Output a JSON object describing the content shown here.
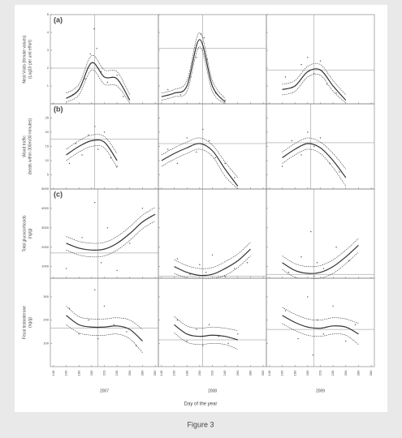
{
  "figure": {
    "caption": "Figure 3",
    "xlabel": "Day of the year",
    "years": [
      "2007",
      "2008",
      "2009"
    ],
    "rows": [
      {
        "letter": "(a)",
        "ylabel": [
          "Nest Visits (female values)",
          "(Log10 per unit effort)"
        ]
      },
      {
        "letter": "(b)",
        "ylabel": [
          "Wood traffic",
          "(beats within 300m/30 minutes)"
        ]
      },
      {
        "letter": "(c)",
        "ylabel": [
          "Total glucocorticoids",
          "(ng/g)"
        ]
      },
      {
        "ylabel": [
          "Fecal testosterone",
          "(ng/g)"
        ]
      }
    ]
  },
  "chart_data": [
    {
      "type": "line",
      "xlim": [
        135,
        305
      ],
      "xticks": [
        140,
        160,
        180,
        200,
        220,
        240,
        260,
        280,
        300
      ],
      "ylim": [
        0,
        5
      ],
      "yticks": [
        1,
        2,
        3,
        4,
        5
      ],
      "color": "#333333",
      "x": [
        140,
        160,
        180,
        200,
        220,
        240,
        260,
        280,
        300
      ],
      "fit": [
        null,
        0.3,
        0.8,
        2.3,
        1.5,
        1.4,
        0.2,
        null,
        null
      ],
      "upper": [
        null,
        0.6,
        1.1,
        2.7,
        1.9,
        1.8,
        0.5,
        null,
        null
      ],
      "lower": [
        null,
        0.1,
        0.5,
        1.9,
        1.1,
        1.0,
        0.05,
        null,
        null
      ],
      "hline": 2.0,
      "vline": 205,
      "points_x": [
        170,
        190,
        198,
        204,
        208,
        215,
        225,
        240,
        250
      ],
      "points_y": [
        0.5,
        1.4,
        2.8,
        4.2,
        3.1,
        1.8,
        1.2,
        1.6,
        0.4
      ]
    },
    {
      "type": "line",
      "xlim": [
        135,
        305
      ],
      "xticks": [
        140,
        160,
        180,
        200,
        220,
        240,
        260,
        280,
        300
      ],
      "ylim": [
        0,
        5
      ],
      "yticks": [
        1,
        2,
        3,
        4,
        5
      ],
      "color": "#333333",
      "x": [
        140,
        160,
        180,
        200,
        220,
        240,
        260,
        280,
        300
      ],
      "fit": [
        0.4,
        0.6,
        1.0,
        3.6,
        1.0,
        0.1,
        null,
        null,
        null
      ],
      "upper": [
        0.6,
        0.8,
        1.3,
        4.0,
        1.3,
        0.3,
        null,
        null,
        null
      ],
      "lower": [
        0.2,
        0.4,
        0.7,
        3.2,
        0.7,
        0.0,
        null,
        null,
        null
      ],
      "hline": 3.1,
      "vline": 205,
      "points_x": [
        150,
        170,
        185,
        195,
        202,
        207,
        212,
        225,
        240
      ],
      "points_y": [
        0.8,
        0.5,
        1.5,
        2.6,
        3.9,
        3.7,
        2.5,
        0.6,
        0.2
      ]
    },
    {
      "type": "line",
      "xlim": [
        135,
        305
      ],
      "xticks": [
        140,
        160,
        180,
        200,
        220,
        240,
        260,
        280,
        300
      ],
      "ylim": [
        0,
        5
      ],
      "yticks": [
        1,
        2,
        3,
        4,
        5
      ],
      "color": "#333333",
      "x": [
        140,
        160,
        180,
        200,
        220,
        240,
        260,
        280,
        300
      ],
      "fit": [
        null,
        0.8,
        1.0,
        1.8,
        1.9,
        1.0,
        0.2,
        null,
        null
      ],
      "upper": [
        null,
        1.1,
        1.3,
        2.1,
        2.2,
        1.3,
        0.5,
        null,
        null
      ],
      "lower": [
        null,
        0.5,
        0.7,
        1.5,
        1.6,
        0.7,
        0.05,
        null,
        null
      ],
      "hline": 1.9,
      "vline": 210,
      "points_x": [
        165,
        175,
        190,
        200,
        210,
        220,
        230,
        245
      ],
      "points_y": [
        1.5,
        0.9,
        2.2,
        2.6,
        1.7,
        2.4,
        1.1,
        0.6
      ]
    },
    {
      "type": "line",
      "xlim": [
        135,
        305
      ],
      "xticks": [
        140,
        160,
        180,
        200,
        220,
        240,
        260,
        280,
        300
      ],
      "ylim": [
        0,
        30
      ],
      "yticks": [
        5,
        10,
        15,
        20,
        25
      ],
      "color": "#333333",
      "x": [
        140,
        160,
        180,
        200,
        220,
        240,
        260,
        280,
        300
      ],
      "fit": [
        null,
        12,
        15,
        17,
        16.5,
        10,
        null,
        null,
        null
      ],
      "upper": [
        null,
        14,
        17,
        19,
        18.5,
        12.5,
        null,
        null,
        null
      ],
      "lower": [
        null,
        10,
        13,
        15,
        14.5,
        7.5,
        null,
        null,
        null
      ],
      "hline": 17.5,
      "vline": 205,
      "points_x": [
        165,
        175,
        185,
        195,
        205,
        210,
        220,
        230,
        240
      ],
      "points_y": [
        9,
        16,
        12,
        19,
        22,
        14,
        20,
        11,
        8
      ]
    },
    {
      "type": "line",
      "xlim": [
        135,
        305
      ],
      "xticks": [
        140,
        160,
        180,
        200,
        220,
        240,
        260,
        280,
        300
      ],
      "ylim": [
        0,
        30
      ],
      "yticks": [
        5,
        10,
        15,
        20,
        25
      ],
      "color": "#333333",
      "x": [
        140,
        160,
        180,
        200,
        220,
        240,
        260,
        280,
        300
      ],
      "fit": [
        10,
        12.5,
        14.5,
        16,
        13.5,
        7,
        1,
        null,
        null
      ],
      "upper": [
        12,
        14.5,
        16.5,
        18,
        15.5,
        9.5,
        4,
        null,
        null
      ],
      "lower": [
        8,
        10.5,
        12.5,
        14,
        11.5,
        4.5,
        0,
        null,
        null
      ],
      "hline": 16,
      "vline": 205,
      "points_x": [
        150,
        165,
        180,
        195,
        205,
        215,
        225,
        240,
        255
      ],
      "points_y": [
        14,
        9,
        18,
        13,
        21,
        17,
        11,
        9,
        4
      ]
    },
    {
      "type": "line",
      "xlim": [
        135,
        305
      ],
      "xticks": [
        140,
        160,
        180,
        200,
        220,
        240,
        260,
        280,
        300
      ],
      "ylim": [
        0,
        30
      ],
      "yticks": [
        5,
        10,
        15,
        20,
        25
      ],
      "color": "#333333",
      "x": [
        140,
        160,
        180,
        200,
        220,
        240,
        260,
        280,
        300
      ],
      "fit": [
        null,
        11,
        14,
        16,
        14.5,
        10,
        4,
        null,
        null
      ],
      "upper": [
        null,
        13,
        16,
        18,
        16.5,
        12.5,
        7,
        null,
        null
      ],
      "lower": [
        null,
        9,
        12,
        14,
        12.5,
        7.5,
        1,
        null,
        null
      ],
      "hline": 16.3,
      "vline": 205,
      "points_x": [
        160,
        175,
        190,
        200,
        210,
        220,
        235,
        250
      ],
      "points_y": [
        8,
        17,
        12,
        20,
        15,
        18,
        9,
        6
      ]
    },
    {
      "type": "line",
      "xlim": [
        135,
        305
      ],
      "xticks": [
        140,
        160,
        180,
        200,
        220,
        240,
        260,
        280,
        300
      ],
      "ylim": [
        400,
        5000
      ],
      "yticks": [
        1000,
        2000,
        3000,
        4000,
        5000
      ],
      "color": "#333333",
      "x": [
        140,
        160,
        180,
        200,
        220,
        240,
        260,
        280,
        300
      ],
      "fit": [
        null,
        2200,
        1950,
        1850,
        1900,
        2200,
        2700,
        3300,
        3700
      ],
      "upper": [
        null,
        2550,
        2300,
        2200,
        2250,
        2550,
        3050,
        3650,
        4050
      ],
      "lower": [
        null,
        1850,
        1600,
        1500,
        1550,
        1850,
        2350,
        2950,
        3350
      ],
      "hline": 1700,
      "vline": 210,
      "points_x": [
        160,
        185,
        205,
        215,
        225,
        240,
        260,
        280
      ],
      "points_y": [
        900,
        2500,
        4300,
        1200,
        3000,
        800,
        2200,
        4000
      ]
    },
    {
      "type": "line",
      "xlim": [
        135,
        305
      ],
      "xticks": [
        140,
        160,
        180,
        200,
        220,
        240,
        260,
        280,
        300
      ],
      "ylim": [
        400,
        5000
      ],
      "yticks": [
        1000,
        2000,
        3000,
        4000,
        5000
      ],
      "color": "#333333",
      "x": [
        140,
        160,
        180,
        200,
        220,
        240,
        260,
        280,
        300
      ],
      "fit": [
        null,
        1000,
        700,
        550,
        600,
        900,
        1300,
        1900,
        null
      ],
      "upper": [
        null,
        1350,
        1050,
        900,
        950,
        1250,
        1650,
        2250,
        null
      ],
      "lower": [
        null,
        650,
        420,
        400,
        400,
        550,
        950,
        1550,
        null
      ],
      "hline": 500,
      "vline": 205,
      "points_x": [
        165,
        185,
        200,
        210,
        220,
        240,
        255,
        275
      ],
      "points_y": [
        1400,
        600,
        1100,
        700,
        1600,
        500,
        900,
        1200
      ]
    },
    {
      "type": "line",
      "xlim": [
        135,
        305
      ],
      "xticks": [
        140,
        160,
        180,
        200,
        220,
        240,
        260,
        280,
        300
      ],
      "ylim": [
        400,
        5000
      ],
      "yticks": [
        1000,
        2000,
        3000,
        4000,
        5000
      ],
      "color": "#333333",
      "x": [
        140,
        160,
        180,
        200,
        220,
        240,
        260,
        280,
        300
      ],
      "fit": [
        null,
        1200,
        800,
        650,
        700,
        1000,
        1500,
        2100,
        null
      ],
      "upper": [
        null,
        1550,
        1150,
        1000,
        1050,
        1350,
        1850,
        2450,
        null
      ],
      "lower": [
        null,
        850,
        450,
        400,
        400,
        650,
        1150,
        1750,
        null
      ],
      "hline": 600,
      "vline": 210,
      "points_x": [
        170,
        190,
        205,
        210,
        215,
        225,
        245,
        265
      ],
      "points_y": [
        700,
        1500,
        2800,
        500,
        1200,
        900,
        2000,
        1300
      ]
    },
    {
      "type": "line",
      "xlim": [
        135,
        305
      ],
      "xticks": [
        140,
        160,
        180,
        200,
        220,
        240,
        260,
        280,
        300
      ],
      "ylim": [
        0,
        380
      ],
      "yticks": [
        100,
        200,
        300
      ],
      "color": "#333333",
      "x": [
        140,
        160,
        180,
        200,
        220,
        240,
        260,
        280,
        300
      ],
      "fit": [
        null,
        220,
        180,
        170,
        170,
        175,
        160,
        110,
        null
      ],
      "upper": [
        null,
        260,
        215,
        205,
        205,
        210,
        200,
        160,
        null
      ],
      "lower": [
        null,
        180,
        145,
        135,
        135,
        140,
        120,
        60,
        null
      ],
      "hline": 165,
      "vline": 210,
      "points_x": [
        165,
        180,
        195,
        205,
        210,
        220,
        235,
        255,
        270
      ],
      "points_y": [
        250,
        140,
        200,
        330,
        120,
        260,
        180,
        150,
        90
      ]
    },
    {
      "type": "line",
      "xlim": [
        135,
        305
      ],
      "xticks": [
        140,
        160,
        180,
        200,
        220,
        240,
        260,
        280,
        300
      ],
      "ylim": [
        0,
        380
      ],
      "yticks": [
        100,
        200,
        300
      ],
      "color": "#333333",
      "x": [
        140,
        160,
        180,
        200,
        220,
        240,
        260,
        280,
        300
      ],
      "fit": [
        null,
        180,
        140,
        130,
        135,
        130,
        115,
        null,
        null
      ],
      "upper": [
        null,
        215,
        175,
        165,
        170,
        165,
        155,
        null,
        null
      ],
      "lower": [
        null,
        145,
        105,
        95,
        100,
        95,
        75,
        null,
        null
      ],
      "hline": 115,
      "vline": 205,
      "points_x": [
        165,
        180,
        195,
        205,
        215,
        230,
        245,
        260
      ],
      "points_y": [
        200,
        110,
        160,
        90,
        180,
        130,
        100,
        140
      ]
    },
    {
      "type": "line",
      "xlim": [
        135,
        305
      ],
      "xticks": [
        140,
        160,
        180,
        200,
        220,
        240,
        260,
        280,
        300
      ],
      "ylim": [
        0,
        380
      ],
      "yticks": [
        100,
        200,
        300
      ],
      "color": "#333333",
      "x": [
        140,
        160,
        180,
        200,
        220,
        240,
        260,
        280,
        300
      ],
      "fit": [
        null,
        220,
        190,
        170,
        165,
        175,
        170,
        140,
        null
      ],
      "upper": [
        null,
        255,
        225,
        205,
        200,
        210,
        205,
        185,
        null
      ],
      "lower": [
        null,
        185,
        155,
        135,
        130,
        140,
        135,
        95,
        null
      ],
      "hline": 160,
      "vline": 210,
      "points_x": [
        165,
        185,
        200,
        208,
        215,
        225,
        240,
        260,
        275
      ],
      "points_y": [
        240,
        120,
        300,
        50,
        200,
        140,
        260,
        110,
        180
      ]
    }
  ]
}
